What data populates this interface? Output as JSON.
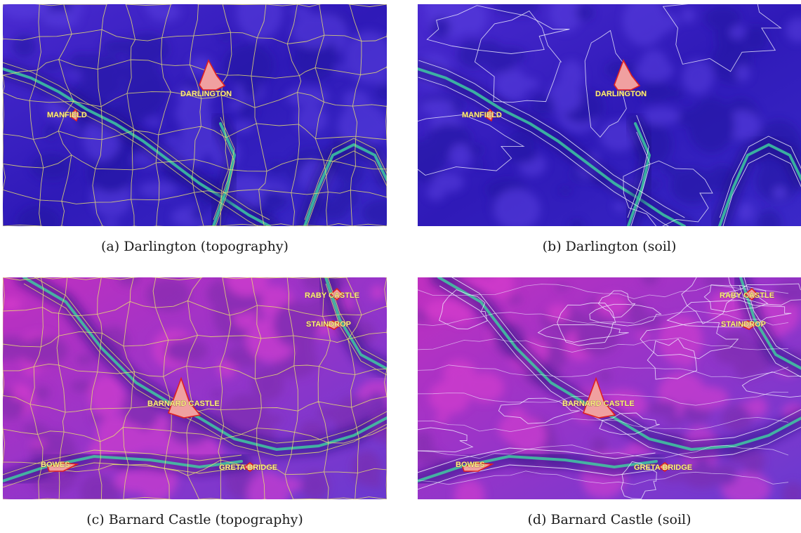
{
  "panels": [
    {
      "id": "a",
      "caption": "(a)  Darlington (topography)",
      "region": "darlington",
      "boundary_type": "topography",
      "towns": [
        {
          "name": "DARLINGTON"
        },
        {
          "name": "MANFIELD"
        }
      ]
    },
    {
      "id": "b",
      "caption": "(b)  Darlington (soil)",
      "region": "darlington",
      "boundary_type": "soil",
      "towns": [
        {
          "name": "DARLINGTON"
        },
        {
          "name": "MANFIELD"
        }
      ]
    },
    {
      "id": "c",
      "caption": "(c)  Barnard Castle (topography)",
      "region": "barnard",
      "boundary_type": "topography",
      "towns": [
        {
          "name": "RABY CASTLE"
        },
        {
          "name": "STAINDROP"
        },
        {
          "name": "BARNARD CASTLE"
        },
        {
          "name": "BOWES"
        },
        {
          "name": "GRETA BRIDGE"
        }
      ]
    },
    {
      "id": "d",
      "caption": "(d)  Barnard Castle (soil)",
      "region": "barnard",
      "boundary_type": "soil",
      "towns": [
        {
          "name": "RABY CASTLE"
        },
        {
          "name": "STAINDROP"
        },
        {
          "name": "BARNARD CASTLE"
        },
        {
          "name": "BOWES"
        },
        {
          "name": "GRETA BRIDGE"
        }
      ]
    }
  ],
  "colors": {
    "darlington_base": "#3a1fc8",
    "barnard_base": "#a02ec0",
    "river": "#3fd6a0",
    "topography_lines": "#e8e070",
    "soil_lines": "#f2f2ff",
    "town_fill": "#f0a0a0",
    "town_outline": "#e02020",
    "town_label": "#ffee88"
  }
}
